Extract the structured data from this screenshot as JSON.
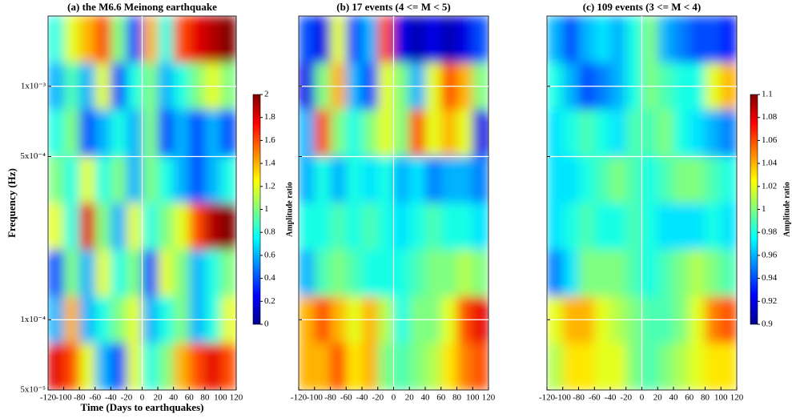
{
  "chart_data": [
    {
      "type": "heatmap",
      "title": "(a)  the M6.6 Meinong earthquake",
      "xlabel": "Time (Days to earthquakes)",
      "ylabel": "Frequency (Hz)",
      "colorbar_label": "Amplitude ratio",
      "xlim": [
        -120,
        120
      ],
      "xticks": [
        -120,
        -100,
        -80,
        -60,
        -40,
        -20,
        0,
        20,
        40,
        60,
        80,
        100,
        120
      ],
      "ylim": [
        5e-05,
        0.002
      ],
      "log_y": true,
      "show_ytick_labels": true,
      "yticks": [
        {
          "value": 5e-05,
          "label": "5x10⁻⁵"
        },
        {
          "value": 0.0001,
          "label": "1x10⁻⁴"
        },
        {
          "value": 0.0005,
          "label": "5x10⁻⁴"
        },
        {
          "value": 0.001,
          "label": "1x10⁻³"
        }
      ],
      "grid": true,
      "zlim": [
        0,
        2
      ],
      "colorbar_ticks": [
        0,
        0.2,
        0.4,
        0.6,
        0.8,
        1,
        1.2,
        1.4,
        1.6,
        1.8,
        2
      ],
      "z": [
        [
          0.8,
          1.2,
          1.4,
          1.6,
          1.0,
          0.4,
          1.4,
          0.8,
          1.6,
          1.8,
          1.9,
          2.0
        ],
        [
          0.6,
          0.9,
          0.6,
          1.2,
          0.4,
          0.8,
          1.0,
          0.6,
          0.8,
          1.0,
          1.2,
          1.0
        ],
        [
          0.8,
          1.0,
          0.4,
          0.6,
          0.8,
          0.6,
          1.0,
          0.4,
          0.6,
          0.4,
          0.6,
          0.4
        ],
        [
          1.0,
          0.8,
          1.2,
          0.8,
          1.0,
          0.6,
          1.0,
          0.8,
          0.6,
          0.4,
          0.6,
          0.8
        ],
        [
          1.2,
          0.8,
          1.8,
          1.0,
          0.6,
          1.2,
          0.8,
          1.0,
          1.2,
          1.6,
          1.9,
          2.0
        ],
        [
          0.4,
          1.0,
          0.6,
          1.2,
          0.8,
          1.0,
          0.4,
          1.2,
          1.0,
          0.6,
          0.8,
          1.0
        ],
        [
          0.6,
          1.4,
          0.6,
          0.8,
          1.0,
          1.2,
          0.6,
          0.8,
          1.0,
          0.6,
          0.8,
          1.2
        ],
        [
          1.8,
          1.6,
          1.2,
          0.6,
          0.4,
          1.2,
          0.8,
          1.0,
          1.4,
          1.6,
          1.8,
          1.6
        ]
      ]
    },
    {
      "type": "heatmap",
      "title": "(b)  17   events  (4 <= M < 5)",
      "xlim": [
        -120,
        120
      ],
      "xticks": [
        -120,
        -100,
        -80,
        -60,
        -40,
        -20,
        0,
        20,
        40,
        60,
        80,
        100,
        120
      ],
      "ylim": [
        5e-05,
        0.002
      ],
      "log_y": true,
      "show_ytick_labels": false,
      "yticks": [
        5e-05,
        0.0001,
        0.0005,
        0.001
      ],
      "grid": true,
      "zlim": [
        0.9,
        1.1
      ],
      "z": [
        [
          0.94,
          0.92,
          1.02,
          0.94,
          0.96,
          1.06,
          0.92,
          0.91,
          0.92,
          0.91,
          0.92,
          0.94
        ],
        [
          0.92,
          1.0,
          1.04,
          0.96,
          0.94,
          1.02,
          1.0,
          0.96,
          1.02,
          1.06,
          1.04,
          1.0
        ],
        [
          0.96,
          1.06,
          1.0,
          0.98,
          1.0,
          1.02,
          1.0,
          1.06,
          1.02,
          1.04,
          1.02,
          0.92
        ],
        [
          0.96,
          0.98,
          0.96,
          0.98,
          0.97,
          0.98,
          0.96,
          0.97,
          0.95,
          0.96,
          0.96,
          0.95
        ],
        [
          0.98,
          0.98,
          0.99,
          0.98,
          0.99,
          0.98,
          0.97,
          0.98,
          0.99,
          0.98,
          0.98,
          0.97
        ],
        [
          0.96,
          0.99,
          1.0,
          0.99,
          0.98,
          0.98,
          0.98,
          0.99,
          1.0,
          1.0,
          1.01,
          1.0
        ],
        [
          1.04,
          1.06,
          1.04,
          1.02,
          1.04,
          1.01,
          0.98,
          1.0,
          1.0,
          1.02,
          1.06,
          1.08
        ],
        [
          1.04,
          1.04,
          1.06,
          1.03,
          1.04,
          1.0,
          0.99,
          1.0,
          1.01,
          1.03,
          1.05,
          1.06
        ]
      ]
    },
    {
      "type": "heatmap",
      "title": "(c)  109   events  (3 <= M < 4)",
      "colorbar_label": "Amplitude ratio",
      "xlim": [
        -120,
        120
      ],
      "xticks": [
        -120,
        -100,
        -80,
        -60,
        -40,
        -20,
        0,
        20,
        40,
        60,
        80,
        100,
        120
      ],
      "ylim": [
        5e-05,
        0.002
      ],
      "log_y": true,
      "show_ytick_labels": false,
      "yticks": [
        5e-05,
        0.0001,
        0.0005,
        0.001
      ],
      "grid": true,
      "zlim": [
        0.9,
        1.1
      ],
      "colorbar_ticks": [
        0.9,
        0.92,
        0.94,
        0.96,
        0.98,
        1,
        1.02,
        1.04,
        1.06,
        1.08,
        1.1
      ],
      "z": [
        [
          0.96,
          0.94,
          0.96,
          0.97,
          0.96,
          0.98,
          1.0,
          0.96,
          0.95,
          0.94,
          0.94,
          0.93
        ],
        [
          0.98,
          0.96,
          0.94,
          0.95,
          0.96,
          0.98,
          1.0,
          0.99,
          0.98,
          0.98,
          1.02,
          1.04
        ],
        [
          0.97,
          0.98,
          0.99,
          0.98,
          0.97,
          0.99,
          0.99,
          1.0,
          0.98,
          0.97,
          0.96,
          0.95
        ],
        [
          0.97,
          0.97,
          0.98,
          0.99,
          1.0,
          0.99,
          0.98,
          0.99,
          1.0,
          1.0,
          0.99,
          0.98
        ],
        [
          0.97,
          0.98,
          0.99,
          0.98,
          0.98,
          0.99,
          0.98,
          0.97,
          0.97,
          0.97,
          0.98,
          0.97
        ],
        [
          0.95,
          0.97,
          1.0,
          1.0,
          1.0,
          0.99,
          0.98,
          0.99,
          1.0,
          1.01,
          1.0,
          0.99
        ],
        [
          1.02,
          1.04,
          1.04,
          1.02,
          1.01,
          1.0,
          0.99,
          0.99,
          1.0,
          1.02,
          1.05,
          1.06
        ],
        [
          1.01,
          1.03,
          1.03,
          1.02,
          1.02,
          1.0,
          0.99,
          1.0,
          1.01,
          1.02,
          1.03,
          1.03
        ]
      ]
    }
  ]
}
